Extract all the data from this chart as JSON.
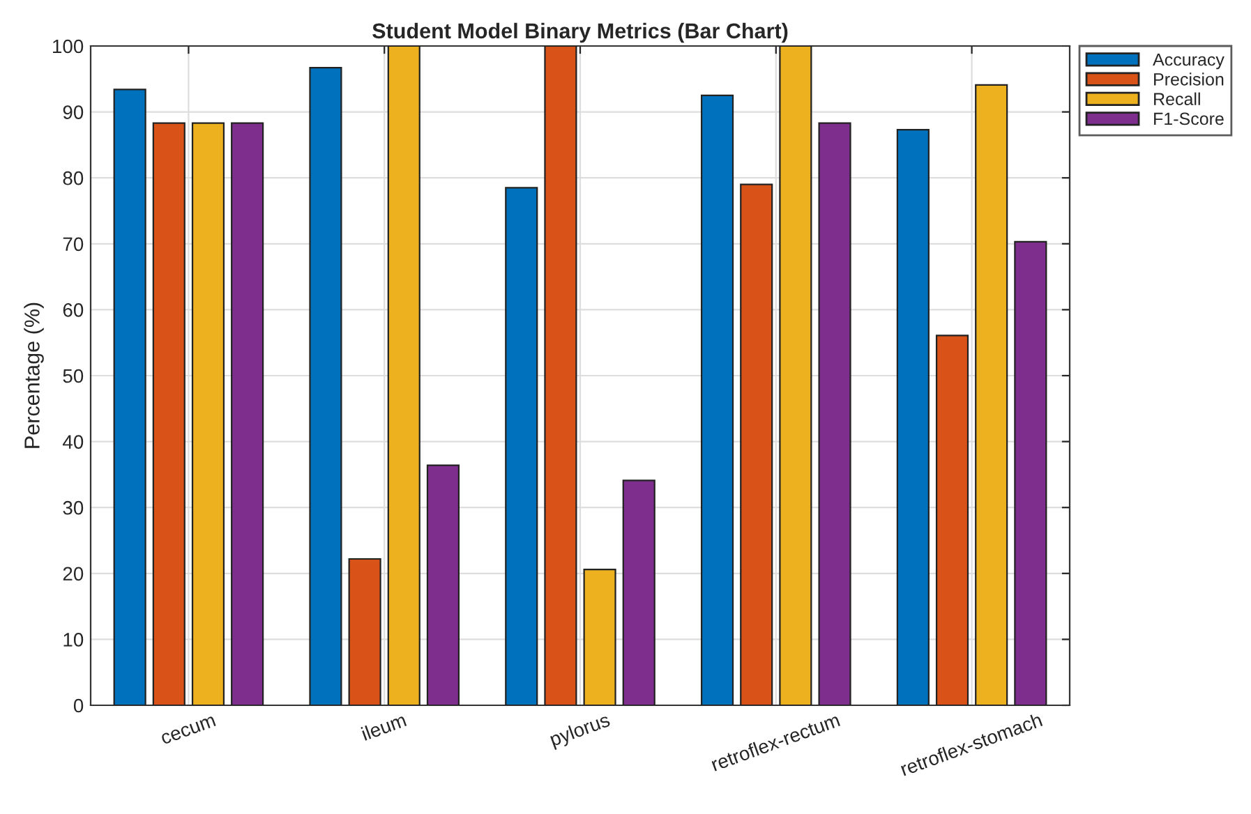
{
  "chart_data": {
    "type": "bar",
    "title": "Student Model Binary Metrics (Bar Chart)",
    "ylabel": "Percentage (%)",
    "categories": [
      "cecum",
      "ileum",
      "pylorus",
      "retroflex-rectum",
      "retroflex-stomach"
    ],
    "series": [
      {
        "name": "Accuracy",
        "color": "#0072bd",
        "values": [
          93.4,
          96.7,
          78.5,
          92.5,
          87.3
        ]
      },
      {
        "name": "Precision",
        "color": "#d95319",
        "values": [
          88.3,
          22.2,
          100,
          79.0,
          56.1
        ]
      },
      {
        "name": "Recall",
        "color": "#edb120",
        "values": [
          88.3,
          100,
          20.6,
          100,
          94.1
        ]
      },
      {
        "name": "F1-Score",
        "color": "#7e2f8e",
        "values": [
          88.3,
          36.4,
          34.1,
          88.3,
          70.3
        ]
      }
    ],
    "ylim": [
      0,
      100
    ],
    "yticks": [
      0,
      10,
      20,
      30,
      40,
      50,
      60,
      70,
      80,
      90,
      100
    ],
    "grid": true,
    "legend": "top right"
  }
}
